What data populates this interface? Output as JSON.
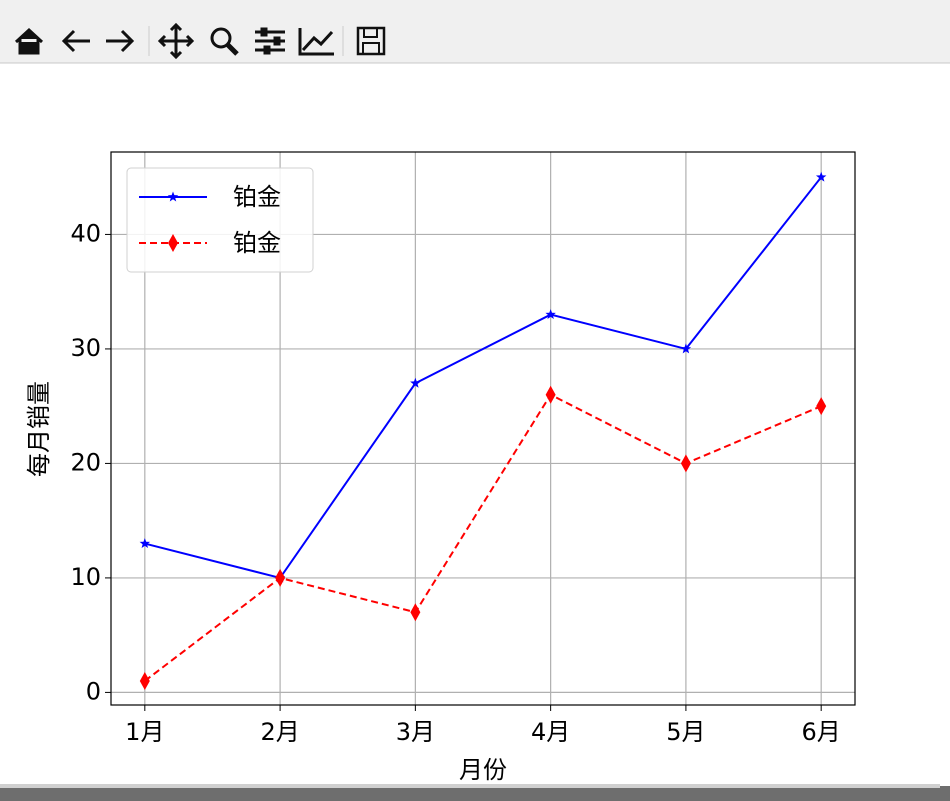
{
  "chart_data": {
    "type": "line",
    "x_label": "月份",
    "y_label": "每月销量",
    "categories": [
      "1月",
      "2月",
      "3月",
      "4月",
      "5月",
      "6月"
    ],
    "series": [
      {
        "name": "铂金",
        "color": "#0000ff",
        "linestyle": "solid",
        "marker": "star",
        "values": [
          13,
          10,
          27,
          33,
          30,
          45
        ]
      },
      {
        "name": "铂金",
        "color": "#ff0000",
        "linestyle": "dashed",
        "marker": "thin_diamond",
        "values": [
          1,
          10,
          7,
          26,
          20,
          25
        ]
      }
    ],
    "ylim": [
      -1.1,
      47.2
    ],
    "yticks": [
      0,
      10,
      20,
      30,
      40
    ],
    "grid": true,
    "legend": "upper left"
  }
}
